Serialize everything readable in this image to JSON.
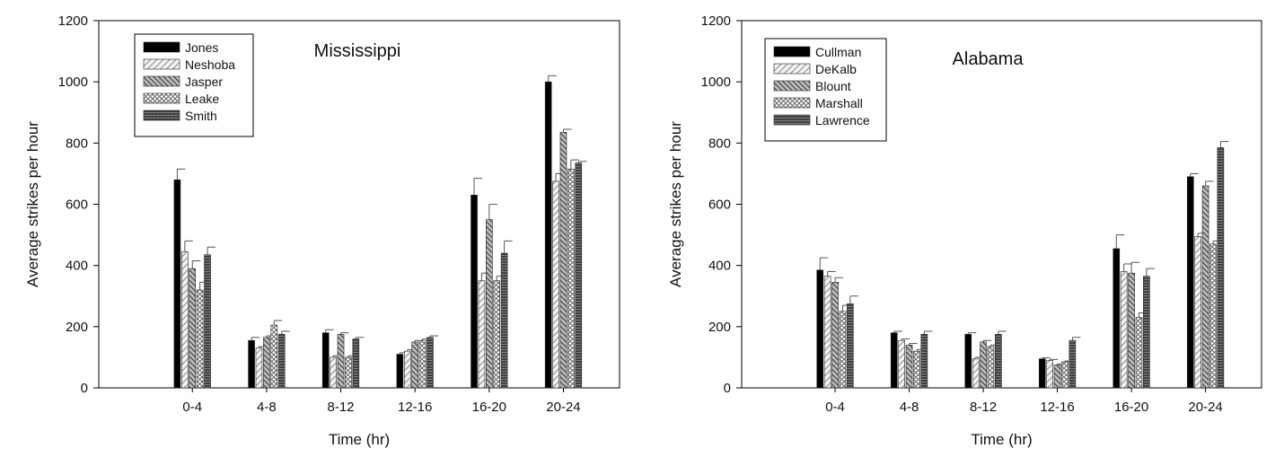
{
  "chart_data": [
    {
      "type": "bar",
      "title": "Mississippi",
      "xlabel": "Time (hr)",
      "ylabel": "Average strikes per hour",
      "ylim": [
        0,
        1200
      ],
      "yticks": [
        0,
        200,
        400,
        600,
        800,
        1000,
        1200
      ],
      "grid": false,
      "legend_position": "top-left",
      "categories": [
        "0-4",
        "4-8",
        "8-12",
        "12-16",
        "16-20",
        "20-24"
      ],
      "series": [
        {
          "name": "Jones",
          "values": [
            680,
            155,
            180,
            110,
            630,
            1000
          ],
          "errors": [
            35,
            10,
            10,
            5,
            55,
            20
          ],
          "pattern": "solid"
        },
        {
          "name": "Neshoba",
          "values": [
            445,
            130,
            100,
            120,
            350,
            675
          ],
          "errors": [
            35,
            5,
            5,
            5,
            25,
            25
          ],
          "pattern": "diag-light"
        },
        {
          "name": "Jasper",
          "values": [
            390,
            165,
            175,
            150,
            550,
            835
          ],
          "errors": [
            25,
            5,
            5,
            5,
            50,
            10
          ],
          "pattern": "diag-dark"
        },
        {
          "name": "Leake",
          "values": [
            320,
            205,
            100,
            155,
            350,
            715
          ],
          "errors": [
            25,
            15,
            5,
            5,
            15,
            30
          ],
          "pattern": "cross"
        },
        {
          "name": "Smith",
          "values": [
            435,
            175,
            160,
            165,
            440,
            735
          ],
          "errors": [
            25,
            10,
            5,
            5,
            40,
            5
          ],
          "pattern": "horizontal"
        }
      ]
    },
    {
      "type": "bar",
      "title": "Alabama",
      "xlabel": "Time (hr)",
      "ylabel": "Average strikes per hour",
      "ylim": [
        0,
        1200
      ],
      "yticks": [
        0,
        200,
        400,
        600,
        800,
        1000,
        1200
      ],
      "grid": false,
      "legend_position": "top-left",
      "categories": [
        "0-4",
        "4-8",
        "8-12",
        "12-16",
        "16-20",
        "20-24"
      ],
      "series": [
        {
          "name": "Cullman",
          "values": [
            385,
            180,
            175,
            95,
            455,
            690
          ],
          "errors": [
            40,
            5,
            5,
            3,
            45,
            10
          ],
          "pattern": "solid"
        },
        {
          "name": "DeKalb",
          "values": [
            365,
            155,
            95,
            90,
            380,
            495
          ],
          "errors": [
            15,
            5,
            5,
            3,
            25,
            10
          ],
          "pattern": "diag-light"
        },
        {
          "name": "Blount",
          "values": [
            345,
            140,
            150,
            75,
            375,
            660
          ],
          "errors": [
            15,
            5,
            5,
            3,
            35,
            15
          ],
          "pattern": "diag-dark"
        },
        {
          "name": "Marshall",
          "values": [
            250,
            120,
            135,
            85,
            230,
            470
          ],
          "errors": [
            20,
            5,
            5,
            3,
            15,
            10
          ],
          "pattern": "cross"
        },
        {
          "name": "Lawrence",
          "values": [
            275,
            175,
            175,
            155,
            365,
            785
          ],
          "errors": [
            25,
            10,
            10,
            10,
            25,
            20
          ],
          "pattern": "horizontal"
        }
      ]
    }
  ]
}
